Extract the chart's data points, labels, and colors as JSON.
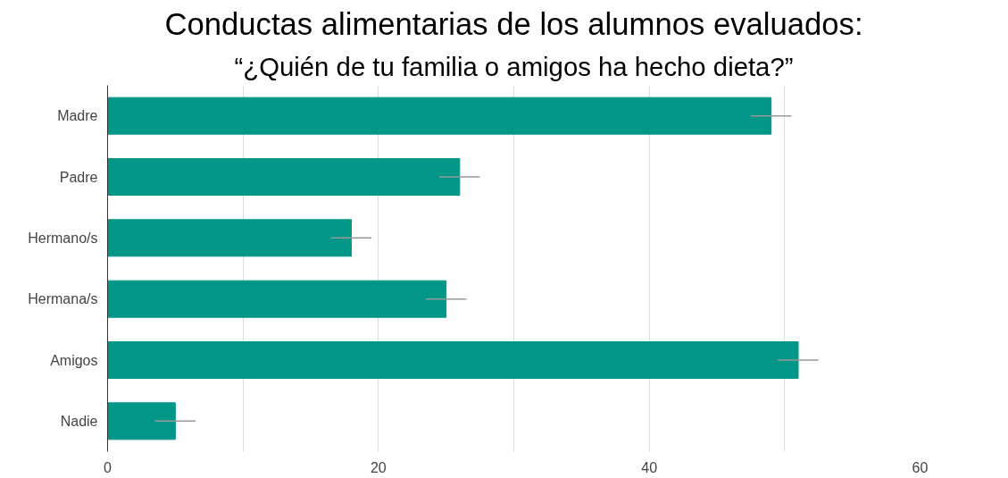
{
  "chart_data": {
    "type": "bar",
    "orientation": "horizontal",
    "title": "Conductas alimentarias de los alumnos evaluados:",
    "subtitle": "“¿Quién de tu familia o amigos ha hecho dieta?”",
    "categories": [
      "Madre",
      "Padre",
      "Hermano/s",
      "Hermana/s",
      "Amigos",
      "Nadie"
    ],
    "values": [
      49,
      26,
      18,
      25,
      51,
      5
    ],
    "errors": [
      1.5,
      1.5,
      1.5,
      1.5,
      1.5,
      1.5
    ],
    "color": "#009688",
    "xlim": [
      0,
      60
    ],
    "xticks": [
      0,
      {
        "value": 10,
        "label": null
      },
      20,
      {
        "value": 30,
        "label": null
      },
      40,
      {
        "value": 50,
        "label": null
      },
      60
    ],
    "grid": "x"
  }
}
